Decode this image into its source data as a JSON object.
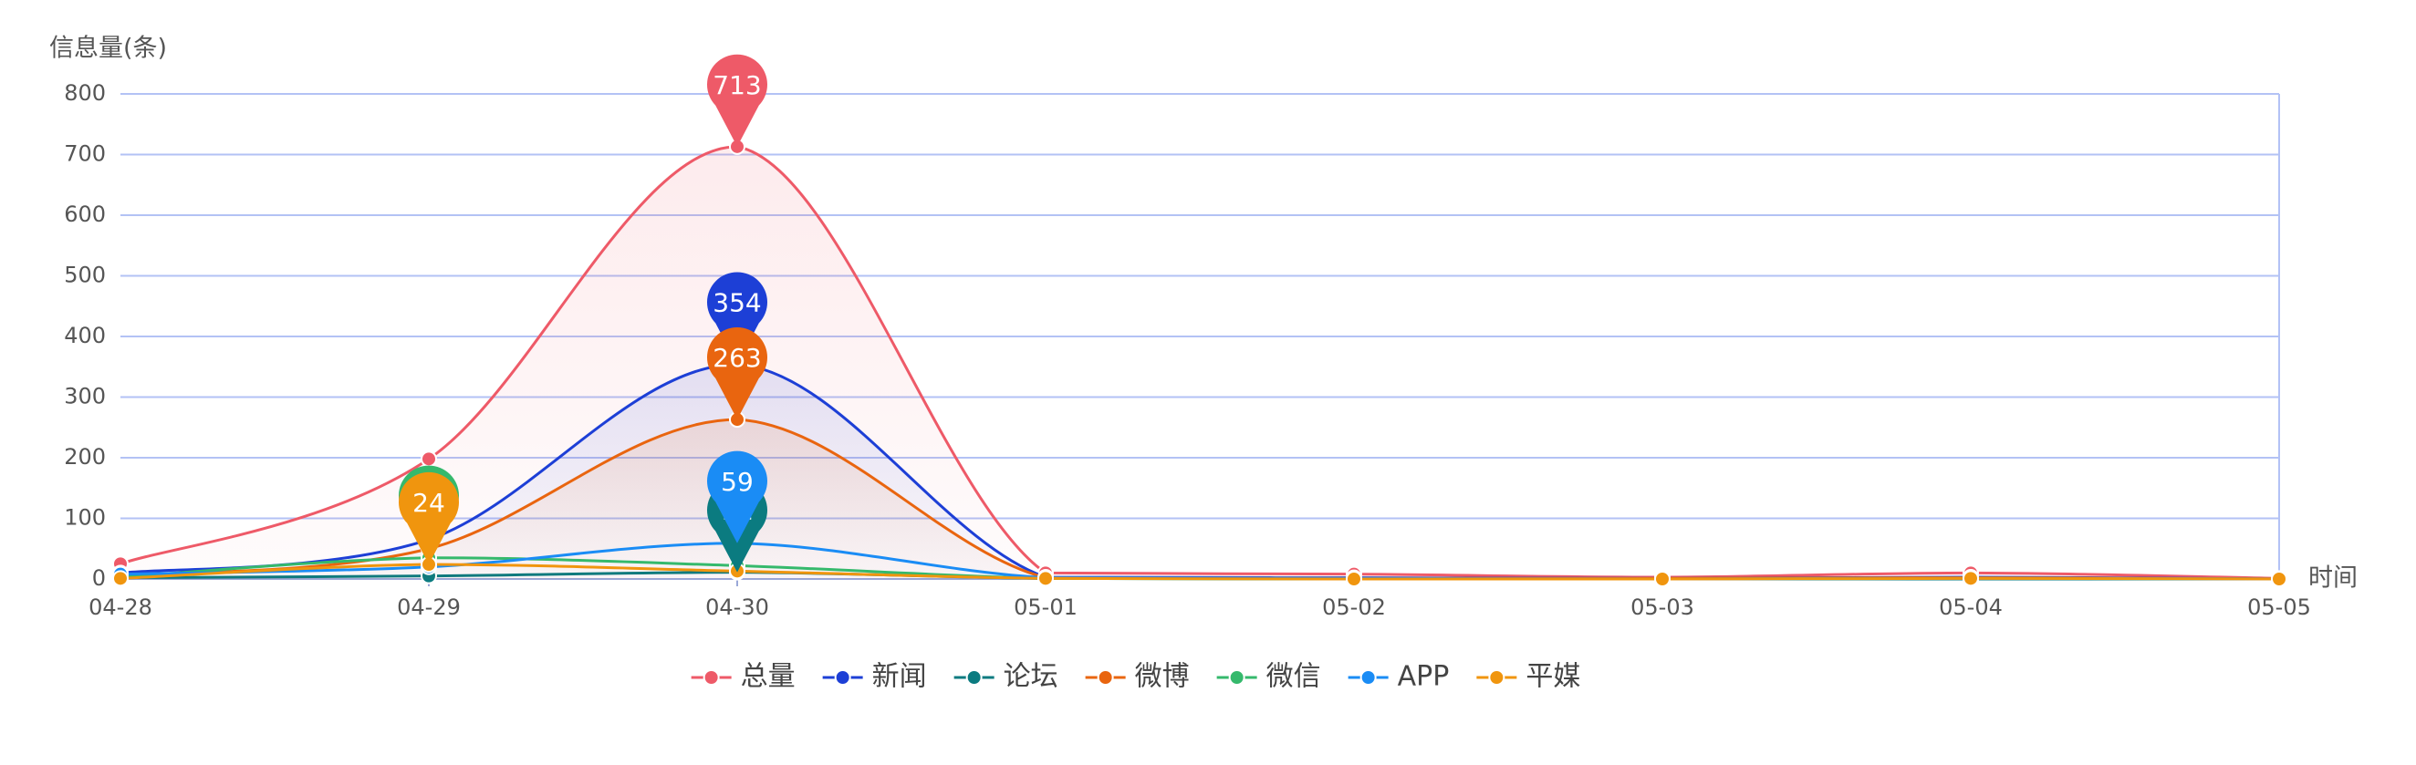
{
  "chart_data": {
    "type": "line",
    "y_label": "信息量(条)",
    "x_label": "时间",
    "categories": [
      "04-28",
      "04-29",
      "04-30",
      "05-01",
      "05-02",
      "05-03",
      "05-04",
      "05-05"
    ],
    "ylim": [
      0,
      800
    ],
    "yticks": [
      0,
      100,
      200,
      300,
      400,
      500,
      600,
      700,
      800
    ],
    "grid": true,
    "smooth": true,
    "max_pin": true,
    "legend": "bottom",
    "series": [
      {
        "name": "总量",
        "color": "#ee5a68",
        "area": true,
        "values": [
          25,
          198,
          713,
          10,
          8,
          3,
          10,
          1
        ]
      },
      {
        "name": "新闻",
        "color": "#1d3fd6",
        "area": true,
        "values": [
          10,
          65,
          354,
          3,
          2,
          1,
          3,
          0
        ]
      },
      {
        "name": "论坛",
        "color": "#0b7b80",
        "values": [
          2,
          5,
          11,
          1,
          0,
          0,
          0,
          0
        ]
      },
      {
        "name": "微博",
        "color": "#e9650f",
        "area": true,
        "values": [
          5,
          50,
          263,
          2,
          1,
          1,
          2,
          0
        ]
      },
      {
        "name": "微信",
        "color": "#35b96c",
        "values": [
          3,
          35,
          22,
          1,
          0,
          0,
          1,
          0
        ]
      },
      {
        "name": "APP",
        "color": "#1a8cf5",
        "values": [
          8,
          20,
          59,
          2,
          1,
          0,
          1,
          0
        ]
      },
      {
        "name": "平媒",
        "color": "#f0950e",
        "values": [
          1,
          24,
          13,
          1,
          0,
          0,
          1,
          0
        ]
      }
    ]
  }
}
